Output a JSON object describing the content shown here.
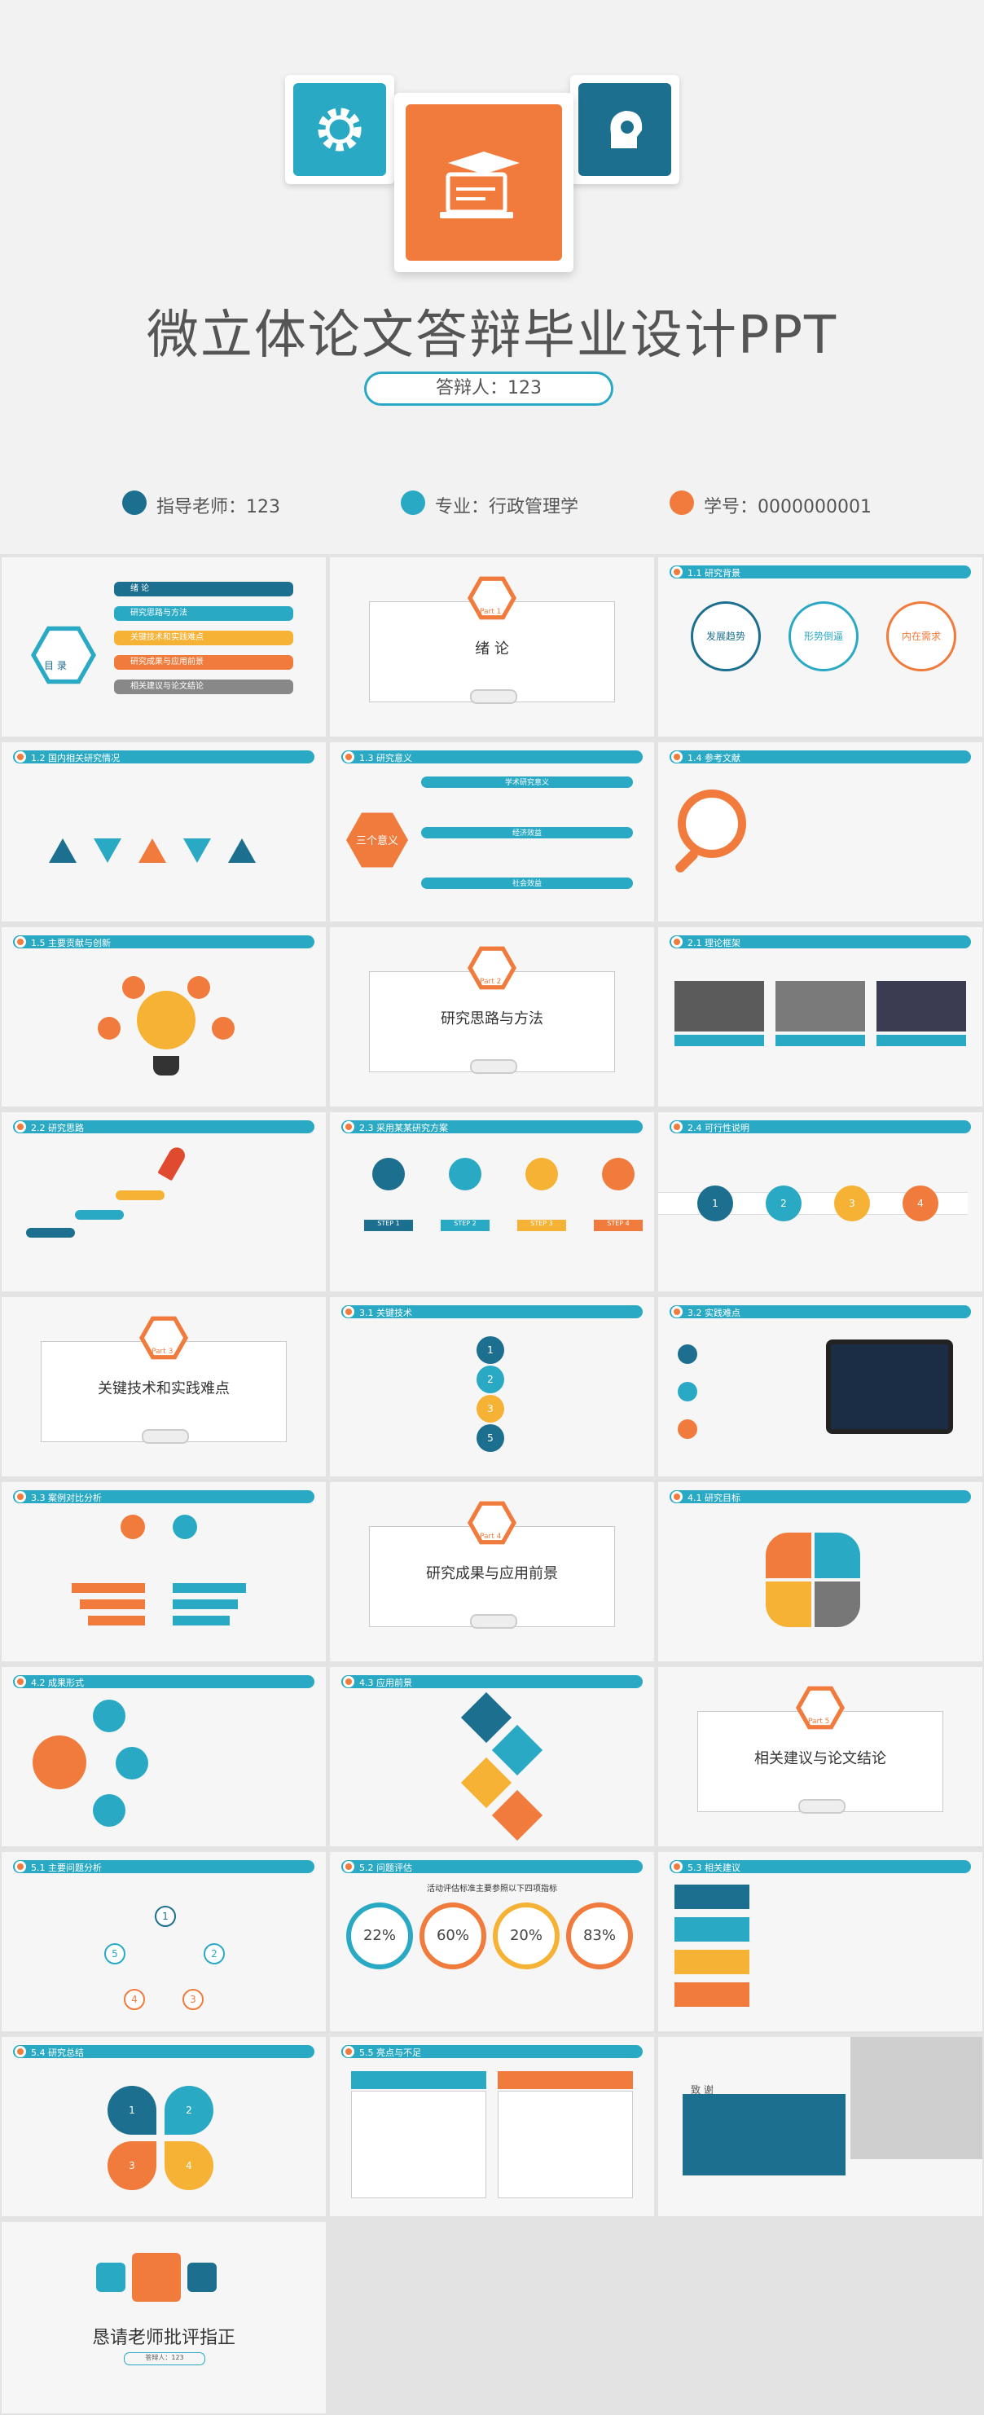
{
  "cover": {
    "title": "微立体论文答辩毕业设计PPT",
    "defender": "答辩人：123",
    "advisor": "指导老师：123",
    "major": "专业：行政管理学",
    "student_id": "学号：0000000001"
  },
  "toc": {
    "label": "目 录",
    "items": [
      "绪 论",
      "研究思路与方法",
      "关键技术和实践难点",
      "研究成果与应用前景",
      "相关建议与论文结论"
    ]
  },
  "sections": {
    "p1": {
      "part": "Part 1",
      "title": "绪 论"
    },
    "p2": {
      "part": "Part 2",
      "title": "研究思路与方法"
    },
    "p3": {
      "part": "Part 3",
      "title": "关键技术和实践难点"
    },
    "p4": {
      "part": "Part 4",
      "title": "研究成果与应用前景"
    },
    "p5": {
      "part": "Part 5",
      "title": "相关建议与论文结论"
    }
  },
  "headers": {
    "h11": "1.1 研究背景",
    "h12": "1.2 国内相关研究情况",
    "h13": "1.3 研究意义",
    "h14": "1.4 参考文献",
    "h15": "1.5 主要贡献与创新",
    "h21": "2.1 理论框架",
    "h22": "2.2 研究思路",
    "h23": "2.3 采用某某研究方案",
    "h24": "2.4 可行性说明",
    "h31": "3.1 关键技术",
    "h32": "3.2 实践难点",
    "h33": "3.3 案例对比分析",
    "h41": "4.1 研究目标",
    "h42": "4.2 成果形式",
    "h43": "4.3 应用前景",
    "h51": "5.1 主要问题分析",
    "h52": "5.2 问题评估",
    "h53": "5.3 相关建议",
    "h54": "5.4 研究总结",
    "h55": "5.5 亮点与不足"
  },
  "background": {
    "items": [
      "发展趋势",
      "形势倒逼",
      "内在需求"
    ]
  },
  "significance": {
    "center": "三个意义",
    "labels": [
      "学术研究意义",
      "经济效益",
      "社会效益"
    ]
  },
  "steps": {
    "items": [
      "STEP 1",
      "STEP 2",
      "STEP 3",
      "STEP 4"
    ]
  },
  "stats": {
    "values": [
      "22%",
      "60%",
      "20%",
      "83%"
    ],
    "caption": "活动评估标准主要参照以下四项指标"
  },
  "thanks": {
    "label": "致 谢"
  },
  "closing": {
    "title": "恳请老师批评指正",
    "defender": "答辩人：123"
  },
  "colors": {
    "teal": "#2aa9c5",
    "orange": "#f07b3c",
    "navy": "#1d6f8f",
    "yellow": "#f6b234",
    "bg": "#f2f2f2"
  }
}
